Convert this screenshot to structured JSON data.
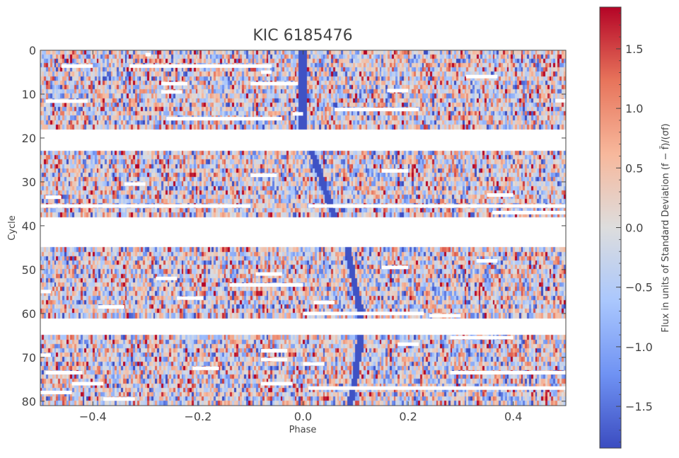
{
  "chart_data": {
    "type": "heatmap",
    "title": "KIC 6185476",
    "xlabel": "Phase",
    "ylabel": "Cycle",
    "xlim": [
      -0.5,
      0.5
    ],
    "ylim": [
      81,
      0
    ],
    "x_ticks": [
      -0.4,
      -0.2,
      0.0,
      0.2,
      0.4
    ],
    "x_tick_labels": [
      "−0.4",
      "−0.2",
      "0.0",
      "0.2",
      "0.4"
    ],
    "y_ticks": [
      0,
      10,
      20,
      30,
      40,
      50,
      60,
      70,
      80
    ],
    "y_tick_labels": [
      "0",
      "10",
      "20",
      "30",
      "40",
      "50",
      "60",
      "70",
      "80"
    ],
    "grid": false,
    "colormap": "coolwarm",
    "colormap_stops": [
      "#3b4cc0",
      "#6f92f3",
      "#aac7fd",
      "#dddddd",
      "#f7b89c",
      "#e7745b",
      "#b40426"
    ],
    "colorbar": {
      "label": "Flux in units of Standard Deviation (f − f̄)/(σf)",
      "range": [
        -1.85,
        1.85
      ],
      "ticks": [
        1.5,
        1.0,
        0.5,
        0.0,
        -0.5,
        -1.0,
        -1.5
      ],
      "tick_labels": [
        "1.5",
        "1.0",
        "0.5",
        "0.0",
        "−0.5",
        "−1.0",
        "−1.5"
      ]
    },
    "gap_cycles": [
      [
        18.5,
        23.5
      ],
      [
        38.5,
        45
      ],
      [
        61,
        65
      ]
    ],
    "eclipse_track": {
      "description": "low-flux primary eclipse track drifting in phase",
      "points": [
        [
          0,
          0.0
        ],
        [
          18,
          0.0
        ],
        [
          24,
          0.02
        ],
        [
          38,
          0.06
        ],
        [
          45,
          0.085
        ],
        [
          60,
          0.11
        ],
        [
          65,
          0.11
        ],
        [
          75,
          0.1
        ],
        [
          81,
          0.09
        ]
      ],
      "value": -1.8
    },
    "data_gaps": [
      [
        3.6,
        -0.46,
        -0.4
      ],
      [
        3.6,
        -0.33,
        -0.06
      ],
      [
        1.0,
        -0.3,
        -0.29
      ],
      [
        5.0,
        -0.08,
        -0.06
      ],
      [
        6.0,
        0.31,
        0.37
      ],
      [
        7.6,
        -0.27,
        -0.22
      ],
      [
        7.6,
        -0.1,
        -0.01
      ],
      [
        9.5,
        -0.27,
        -0.23
      ],
      [
        9.2,
        0.16,
        0.2
      ],
      [
        11.6,
        -0.49,
        -0.41
      ],
      [
        11.5,
        0.48,
        0.5
      ],
      [
        13.5,
        0.06,
        0.22
      ],
      [
        14.5,
        -0.02,
        0.0
      ],
      [
        15.6,
        -0.26,
        -0.04
      ],
      [
        27.5,
        0.15,
        0.2
      ],
      [
        28.5,
        -0.1,
        -0.05
      ],
      [
        30.5,
        -0.34,
        -0.3
      ],
      [
        33.5,
        -0.49,
        -0.46
      ],
      [
        33.0,
        0.35,
        0.4
      ],
      [
        35.5,
        -0.5,
        -0.1
      ],
      [
        35.5,
        0.01,
        0.5
      ],
      [
        37.0,
        0.36,
        0.5
      ],
      [
        48.0,
        0.33,
        0.37
      ],
      [
        49.5,
        0.15,
        0.2
      ],
      [
        51.0,
        -0.09,
        -0.04
      ],
      [
        52.0,
        -0.28,
        -0.24
      ],
      [
        53.5,
        -0.14,
        0.0
      ],
      [
        55.0,
        -0.5,
        -0.48
      ],
      [
        56.5,
        -0.24,
        -0.19
      ],
      [
        57.5,
        0.02,
        0.06
      ],
      [
        58.5,
        -0.39,
        -0.34
      ],
      [
        60.0,
        0.0,
        0.23
      ],
      [
        60.5,
        0.24,
        0.3
      ],
      [
        65.5,
        0.28,
        0.4
      ],
      [
        67.0,
        0.18,
        0.22
      ],
      [
        68.5,
        -0.08,
        -0.03
      ],
      [
        69.5,
        -0.5,
        -0.48
      ],
      [
        70.5,
        -0.08,
        -0.03
      ],
      [
        72.5,
        -0.21,
        -0.16
      ],
      [
        71.5,
        0.0,
        0.04
      ],
      [
        73.5,
        -0.49,
        -0.42
      ],
      [
        73.5,
        0.28,
        0.5
      ],
      [
        76.0,
        -0.44,
        -0.38
      ],
      [
        76.0,
        -0.08,
        -0.02
      ],
      [
        77.0,
        0.01,
        0.5
      ],
      [
        78.0,
        -0.5,
        -0.44
      ],
      [
        79.5,
        -0.38,
        -0.32
      ]
    ]
  }
}
